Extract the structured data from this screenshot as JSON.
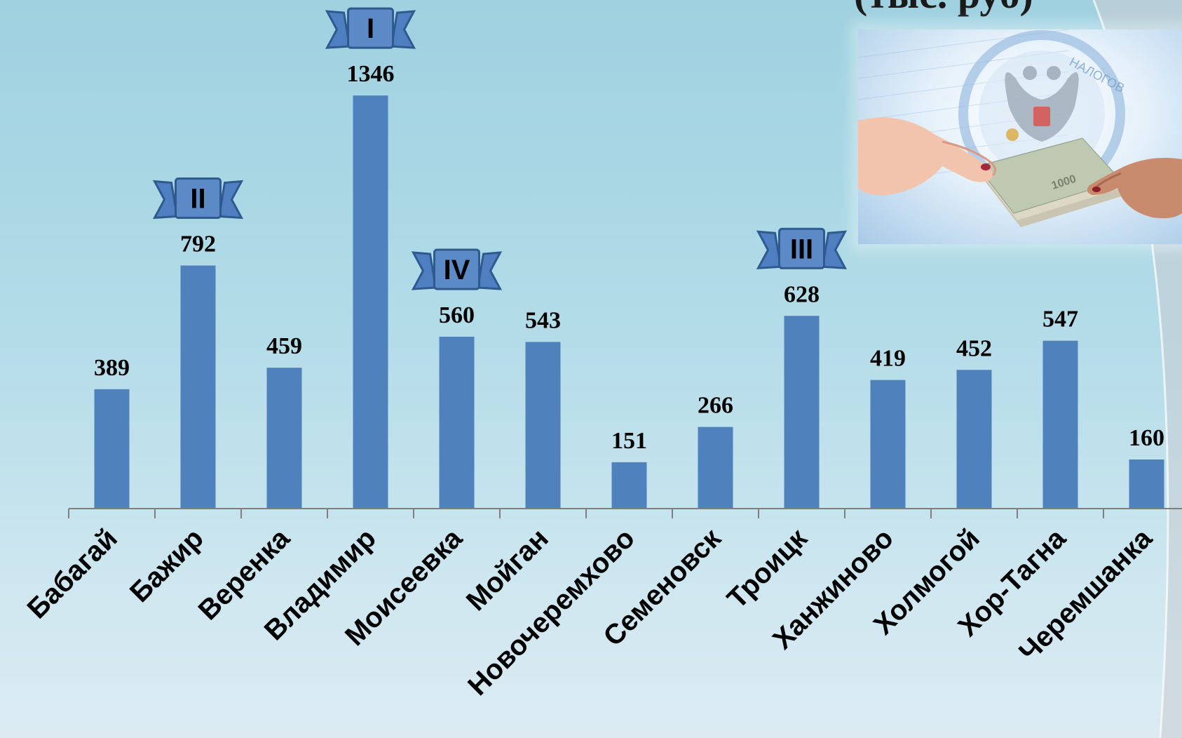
{
  "title_fragment": "(тыс. руб)",
  "chart_data": {
    "type": "bar",
    "title": "",
    "xlabel": "",
    "ylabel": "",
    "categories": [
      "Бабагай",
      "Бажир",
      "Веренка",
      "Владимир",
      "Моисеевка",
      "Мойган",
      "Новочеремхово",
      "Семеновск",
      "Троицк",
      "Ханжиново",
      "Холмогой",
      "Хор-Тагна",
      "Черемшанка"
    ],
    "values": [
      389,
      792,
      459,
      1346,
      560,
      543,
      151,
      266,
      628,
      419,
      452,
      547,
      160
    ],
    "value_labels": [
      "389",
      "792",
      "459",
      "1346",
      "560",
      "543",
      "151",
      "266",
      "628",
      "419",
      "452",
      "547",
      "160"
    ],
    "ranks": [
      {
        "category": "Владимир",
        "label": "I"
      },
      {
        "category": "Бажир",
        "label": "II"
      },
      {
        "category": "Троицк",
        "label": "III"
      },
      {
        "category": "Моисеевка",
        "label": "IV"
      }
    ],
    "ylim": [
      0,
      1400
    ],
    "grid": false,
    "legend": "none",
    "bar_color": "#4f81bd"
  },
  "photo": {
    "icon": "money-handover-photo",
    "seal_text": "НАЛОГОВ",
    "banknote_text": "1000"
  }
}
